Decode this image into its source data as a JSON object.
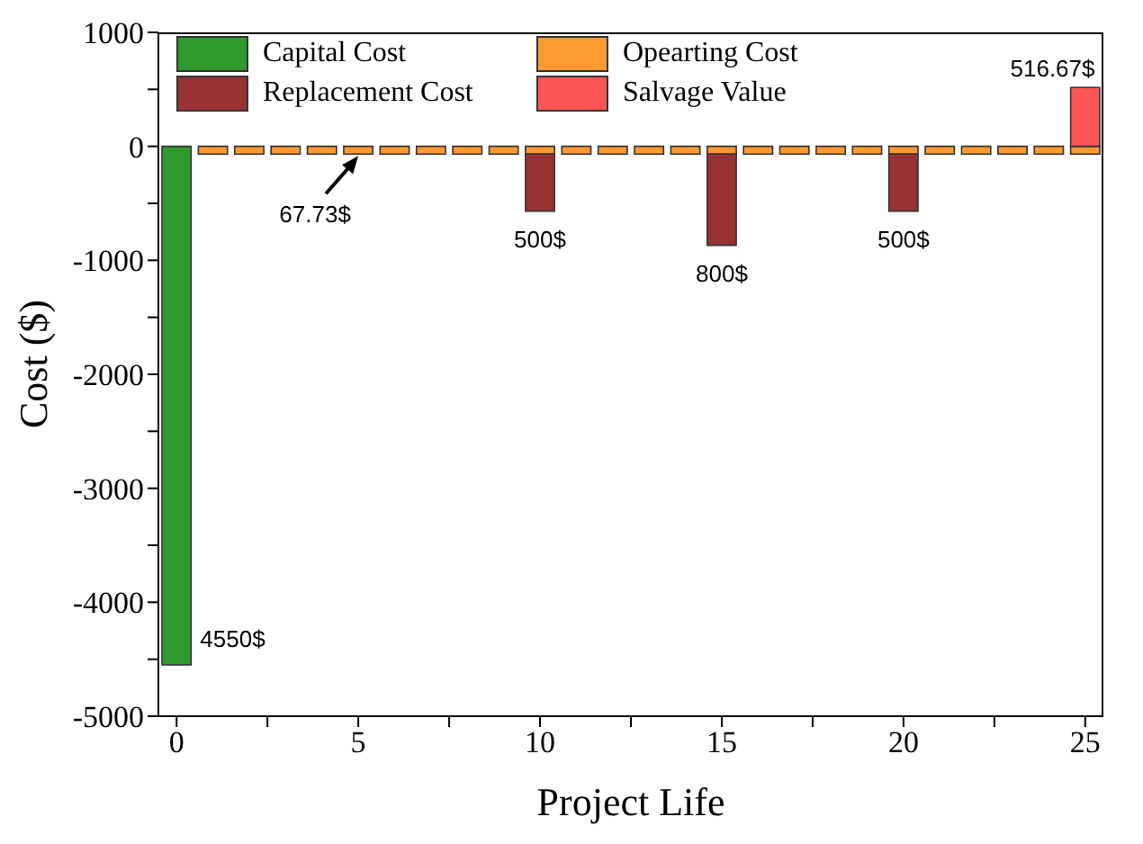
{
  "chart_data": {
    "type": "bar",
    "stacked": true,
    "xlabel": "Project Life",
    "ylabel": "Cost ($)",
    "x": [
      0,
      1,
      2,
      3,
      4,
      5,
      6,
      7,
      8,
      9,
      10,
      11,
      12,
      13,
      14,
      15,
      16,
      17,
      18,
      19,
      20,
      21,
      22,
      23,
      24,
      25
    ],
    "xlim": [
      -0.5,
      25.5
    ],
    "xticks": [
      0,
      {
        "value": 2.5,
        "label": null
      },
      5,
      {
        "value": 7.5,
        "label": null
      },
      10,
      {
        "value": 12.5,
        "label": null
      },
      15,
      {
        "value": 17.5,
        "label": null
      },
      20,
      {
        "value": 22.5,
        "label": null
      },
      25
    ],
    "ylim": [
      -5000,
      1000
    ],
    "yticks": [
      -5000,
      {
        "value": -4500,
        "label": null
      },
      -4000,
      {
        "value": -3500,
        "label": null
      },
      -3000,
      {
        "value": -2500,
        "label": null
      },
      -2000,
      {
        "value": -1500,
        "label": null
      },
      -1000,
      {
        "value": -500,
        "label": null
      },
      0,
      {
        "value": 500,
        "label": null
      },
      1000
    ],
    "grid": false,
    "legend": "top left",
    "series": [
      {
        "name": "Capital Cost",
        "color": "#2e9a2e",
        "values": [
          -4550,
          null,
          null,
          null,
          null,
          null,
          null,
          null,
          null,
          null,
          null,
          null,
          null,
          null,
          null,
          null,
          null,
          null,
          null,
          null,
          null,
          null,
          null,
          null,
          null,
          null
        ]
      },
      {
        "name": "Opearting Cost",
        "color": "#ff9933",
        "values": [
          null,
          -67.73,
          -67.73,
          -67.73,
          -67.73,
          -67.73,
          -67.73,
          -67.73,
          -67.73,
          -67.73,
          -67.73,
          -67.73,
          -67.73,
          -67.73,
          -67.73,
          -67.73,
          -67.73,
          -67.73,
          -67.73,
          -67.73,
          -67.73,
          -67.73,
          -67.73,
          -67.73,
          -67.73,
          -67.73
        ]
      },
      {
        "name": "Replacement Cost",
        "color": "#993333",
        "values": [
          null,
          null,
          null,
          null,
          null,
          null,
          null,
          null,
          null,
          null,
          -500,
          null,
          null,
          null,
          null,
          -800,
          null,
          null,
          null,
          null,
          -500,
          null,
          null,
          null,
          null,
          null
        ]
      },
      {
        "name": "Salvage Value",
        "color": "#ff5555",
        "values": [
          null,
          null,
          null,
          null,
          null,
          null,
          null,
          null,
          null,
          null,
          null,
          null,
          null,
          null,
          null,
          null,
          null,
          null,
          null,
          null,
          null,
          null,
          null,
          null,
          null,
          516.67
        ]
      }
    ],
    "annotations": [
      {
        "text": "4550$",
        "x": 0,
        "y": -4550
      },
      {
        "text": "67.73$",
        "x": 5,
        "y": -67.73
      },
      {
        "text": "500$",
        "x": 10,
        "y": -567.73
      },
      {
        "text": "800$",
        "x": 15,
        "y": -867.73
      },
      {
        "text": "500$",
        "x": 20,
        "y": -567.73
      },
      {
        "text": "516.67$",
        "x": 25,
        "y": 516.67
      }
    ]
  }
}
